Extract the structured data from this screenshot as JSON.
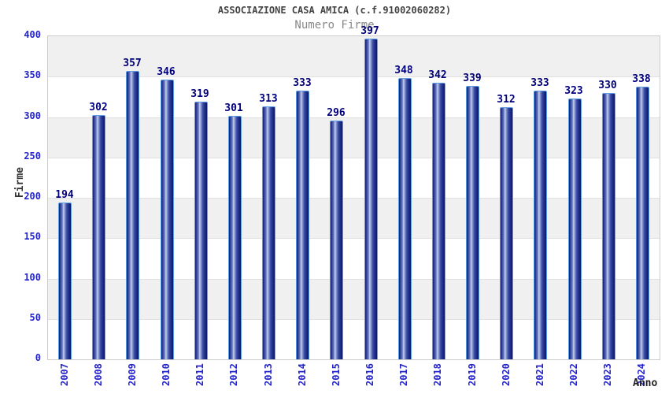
{
  "chart_data": {
    "type": "bar",
    "title": "ASSOCIAZIONE CASA AMICA (c.f.91002060282)",
    "subtitle": "Numero Firme",
    "xlabel": "Anno",
    "ylabel": "Firme",
    "categories": [
      "2007",
      "2008",
      "2009",
      "2010",
      "2011",
      "2012",
      "2013",
      "2014",
      "2015",
      "2016",
      "2017",
      "2018",
      "2019",
      "2020",
      "2021",
      "2022",
      "2023",
      "2024"
    ],
    "values": [
      194,
      302,
      357,
      346,
      319,
      301,
      313,
      333,
      296,
      397,
      348,
      342,
      339,
      312,
      333,
      323,
      330,
      338
    ],
    "ylim": [
      0,
      400
    ],
    "yticks": [
      0,
      50,
      100,
      150,
      200,
      250,
      300,
      350,
      400
    ],
    "grid": "horizontal-bands-alternating",
    "legend": "none",
    "colors": {
      "bar_dark": "#141f72",
      "bar_light": "#c6cfef",
      "bar_border": "#5d9de6",
      "tick_label": "#2424cc",
      "value_label": "#00007d",
      "title": "#444444",
      "subtitle": "#888888",
      "band_gray": "#f0f0f0",
      "band_white": "#ffffff",
      "plot_border": "#cccccc"
    }
  }
}
